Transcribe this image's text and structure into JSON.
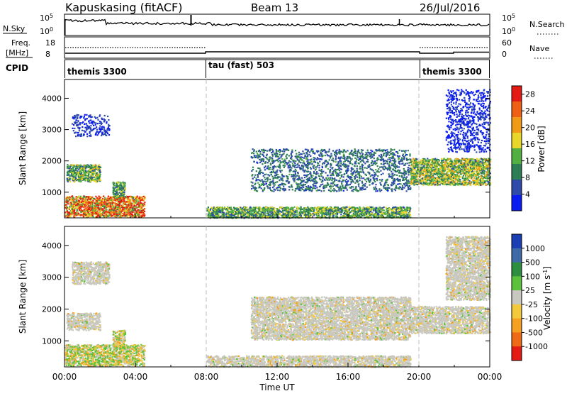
{
  "header": {
    "station": "Kapuskasing (fitACF)",
    "beam": "Beam 13",
    "date": "26/Jul/2016"
  },
  "nsky_panel": {
    "left_label": "N.Sky",
    "tick_top": "10^5",
    "tick_bottom": "10^0",
    "right_label": "N.Search",
    "right_tick_top": "10^5",
    "right_tick_bottom": "10^0"
  },
  "freq_panel": {
    "left_label_line1": "Freq.",
    "left_label_line2": "[MHz]",
    "tick_top": "18",
    "tick_bottom": "8",
    "right_label": "Nave",
    "right_tick_top": "60",
    "right_tick_bottom": "0"
  },
  "cpid_panel": {
    "label": "CPID",
    "segments": [
      {
        "label": "themis 3300",
        "start_h": 0,
        "end_h": 8
      },
      {
        "label": "tau (fast) 503",
        "start_h": 8,
        "end_h": 20
      },
      {
        "label": "themis 3300",
        "start_h": 20,
        "end_h": 24
      }
    ]
  },
  "chart_data": [
    {
      "type": "heatmap",
      "name": "power",
      "ylabel": "Slant Range [km]",
      "xlabel": "",
      "xlim": [
        0,
        24
      ],
      "ylim": [
        180,
        4600
      ],
      "yticks": [
        "1000",
        "2000",
        "3000",
        "4000"
      ],
      "colorbar": {
        "label": "Power [dB]",
        "ticks": [
          "4",
          "8",
          "12",
          "16",
          "20",
          "24",
          "28"
        ],
        "range": [
          0,
          30
        ],
        "colors": [
          "#0a1cf2",
          "#2e4aaa",
          "#2d7e54",
          "#52b043",
          "#e9d62a",
          "#f09a16",
          "#ee6115",
          "#e31b14"
        ]
      },
      "echo_bands": [
        {
          "t0": 0.0,
          "t1": 4.5,
          "r0": 230,
          "r1": 900,
          "level": 0.85
        },
        {
          "t0": 0.1,
          "t1": 2.0,
          "r0": 1350,
          "r1": 1900,
          "level": 0.5
        },
        {
          "t0": 2.7,
          "t1": 3.4,
          "r0": 850,
          "r1": 1350,
          "level": 0.45
        },
        {
          "t0": 0.4,
          "t1": 2.5,
          "r0": 2800,
          "r1": 3500,
          "level": 0.15
        },
        {
          "t0": 8.0,
          "t1": 19.5,
          "r0": 200,
          "r1": 550,
          "level": 0.45
        },
        {
          "t0": 10.5,
          "t1": 19.5,
          "r0": 1050,
          "r1": 2400,
          "level": 0.3
        },
        {
          "t0": 19.5,
          "t1": 24.0,
          "r0": 1250,
          "r1": 2100,
          "level": 0.55
        },
        {
          "t0": 21.5,
          "t1": 24.0,
          "r0": 2300,
          "r1": 4300,
          "level": 0.12
        }
      ]
    },
    {
      "type": "heatmap",
      "name": "velocity",
      "ylabel": "Slant Range [km]",
      "xlabel": "Time UT",
      "xlim": [
        0,
        24
      ],
      "ylim": [
        180,
        4600
      ],
      "xticks": [
        "00:00",
        "04:00",
        "08:00",
        "12:00",
        "16:00",
        "20:00",
        "00:00"
      ],
      "yticks": [
        "1000",
        "2000",
        "3000",
        "4000"
      ],
      "colorbar": {
        "label": "Velocity [m s^-1]",
        "ticks": [
          "1000",
          "500",
          "100",
          "25",
          "-25",
          "-100",
          "-500",
          "-1000"
        ],
        "colors": [
          "#1a3fb4",
          "#3f6aa8",
          "#2d8e40",
          "#5cc23d",
          "#c8c8c0",
          "#f2c93a",
          "#f5a020",
          "#ee6a14",
          "#e31b14"
        ]
      },
      "echo_bands": [
        {
          "t0": 0.0,
          "t1": 4.5,
          "r0": 230,
          "r1": 900,
          "level": 0.5
        },
        {
          "t0": 0.1,
          "t1": 2.0,
          "r0": 1350,
          "r1": 1900,
          "level": 0.45
        },
        {
          "t0": 2.7,
          "t1": 3.4,
          "r0": 850,
          "r1": 1350,
          "level": 0.6
        },
        {
          "t0": 0.4,
          "t1": 2.5,
          "r0": 2800,
          "r1": 3500,
          "level": 0.45
        },
        {
          "t0": 8.0,
          "t1": 19.5,
          "r0": 200,
          "r1": 550,
          "level": 0.45
        },
        {
          "t0": 10.5,
          "t1": 19.5,
          "r0": 1050,
          "r1": 2400,
          "level": 0.45
        },
        {
          "t0": 19.5,
          "t1": 24.0,
          "r0": 1250,
          "r1": 2100,
          "level": 0.45
        },
        {
          "t0": 21.5,
          "t1": 24.0,
          "r0": 2300,
          "r1": 4300,
          "level": 0.45
        }
      ]
    }
  ],
  "divider_times": [
    8,
    20
  ]
}
